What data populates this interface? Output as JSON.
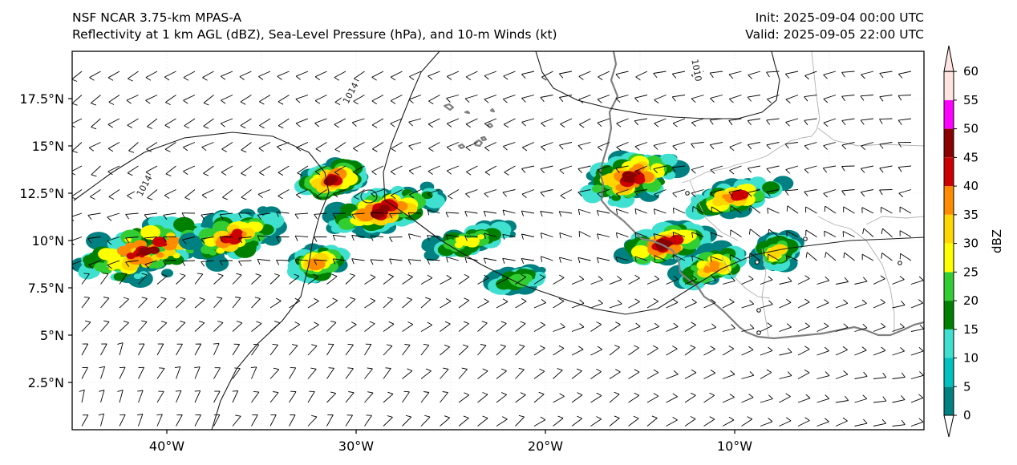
{
  "header": {
    "model": "NSF NCAR 3.75-km MPAS-A",
    "fields": "Reflectivity at 1 km AGL (dBZ), Sea-Level Pressure (hPa), and 10-m Winds (kt)",
    "init": "Init: 2025-09-04 00:00 UTC",
    "valid": "Valid: 2025-09-05 22:00 UTC"
  },
  "map": {
    "lon_range": [
      -45,
      0
    ],
    "lat_range": [
      0,
      20
    ],
    "lon_ticks": [
      {
        "lon": -40,
        "label": "40°W"
      },
      {
        "lon": -30,
        "label": "30°W"
      },
      {
        "lon": -20,
        "label": "20°W"
      },
      {
        "lon": -10,
        "label": "10°W"
      }
    ],
    "lat_ticks": [
      {
        "lat": 2.5,
        "label": "2.5°N"
      },
      {
        "lat": 5,
        "label": "5°N"
      },
      {
        "lat": 7.5,
        "label": "7.5°N"
      },
      {
        "lat": 10,
        "label": "10°N"
      },
      {
        "lat": 12.5,
        "label": "12.5°N"
      },
      {
        "lat": 15,
        "label": "15°N"
      },
      {
        "lat": 17.5,
        "label": "17.5°N"
      }
    ],
    "isobar_labels": [
      {
        "text": "1014",
        "lon": -30.3,
        "lat": 17.8
      },
      {
        "text": "1014",
        "lon": -41.2,
        "lat": 12.9
      },
      {
        "text": "1010",
        "lon": -12.0,
        "lat": 19.0
      }
    ],
    "storm_bands": [
      {
        "lon": -41.0,
        "lat": 9.5,
        "rlon": 4.2,
        "rlat": 1.6,
        "peak": 45
      },
      {
        "lon": -36.5,
        "lat": 10.2,
        "rlon": 2.6,
        "rlat": 1.3,
        "peak": 40
      },
      {
        "lon": -31.3,
        "lat": 13.2,
        "rlon": 1.7,
        "rlat": 0.8,
        "peak": 45
      },
      {
        "lon": -28.5,
        "lat": 11.6,
        "rlon": 3.2,
        "rlat": 1.0,
        "peak": 45
      },
      {
        "lon": -32.0,
        "lat": 8.8,
        "rlon": 1.4,
        "rlat": 0.9,
        "peak": 35
      },
      {
        "lon": -24.0,
        "lat": 10.0,
        "rlon": 2.4,
        "rlat": 0.7,
        "peak": 25
      },
      {
        "lon": -21.5,
        "lat": 7.9,
        "rlon": 1.7,
        "rlat": 0.5,
        "peak": 20
      },
      {
        "lon": -15.5,
        "lat": 13.3,
        "rlon": 2.6,
        "rlat": 1.3,
        "peak": 45
      },
      {
        "lon": -13.6,
        "lat": 9.8,
        "rlon": 2.4,
        "rlat": 0.9,
        "peak": 45
      },
      {
        "lon": -10.0,
        "lat": 12.3,
        "rlon": 2.6,
        "rlat": 0.7,
        "peak": 40
      },
      {
        "lon": -11.2,
        "lat": 8.6,
        "rlon": 1.8,
        "rlat": 0.9,
        "peak": 35
      },
      {
        "lon": -7.8,
        "lat": 9.4,
        "rlon": 1.0,
        "rlat": 0.8,
        "peak": 30
      }
    ]
  },
  "colorbar": {
    "label": "dBZ",
    "levels": [
      0,
      5,
      10,
      15,
      20,
      25,
      30,
      35,
      40,
      45,
      50,
      55,
      60
    ],
    "level_labels": [
      "0",
      "5",
      "10",
      "15",
      "20",
      "25",
      "30",
      "35",
      "40",
      "45",
      "50",
      "55",
      "60"
    ],
    "colors": [
      "#008080",
      "#00c0c0",
      "#40e0d0",
      "#008000",
      "#32cd32",
      "#ffff00",
      "#ffd700",
      "#ff8c00",
      "#cc0000",
      "#8b0000",
      "#ff00ff",
      "#ffe4e1"
    ],
    "under_color": "#ffffff",
    "over_color": "#ffe4e1"
  }
}
